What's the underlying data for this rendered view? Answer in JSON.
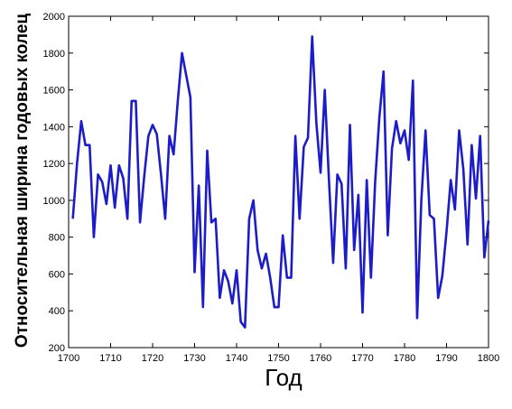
{
  "chart_data": {
    "type": "line",
    "title": "",
    "xlabel": "Год",
    "ylabel": "Относительная ширина годовых колец",
    "xlim": [
      1700,
      1800
    ],
    "ylim": [
      200,
      2000
    ],
    "xticks": [
      1700,
      1710,
      1720,
      1730,
      1740,
      1750,
      1760,
      1770,
      1780,
      1790,
      1800
    ],
    "yticks": [
      200,
      400,
      600,
      800,
      1000,
      1200,
      1400,
      1600,
      1800,
      2000
    ],
    "grid": false,
    "legend": "none",
    "line_color": "#1c1cc8",
    "series": [
      {
        "x": [
          1701,
          1702,
          1703,
          1704,
          1705,
          1706,
          1707,
          1708,
          1709,
          1710,
          1711,
          1712,
          1713,
          1714,
          1715,
          1716,
          1717,
          1718,
          1719,
          1720,
          1721,
          1722,
          1723,
          1724,
          1725,
          1726,
          1727,
          1728,
          1729,
          1730,
          1731,
          1732,
          1733,
          1734,
          1735,
          1736,
          1737,
          1738,
          1739,
          1740,
          1741,
          1742,
          1743,
          1744,
          1745,
          1746,
          1747,
          1748,
          1749,
          1750,
          1751,
          1752,
          1753,
          1754,
          1755,
          1756,
          1757,
          1758,
          1759,
          1760,
          1761,
          1762,
          1763,
          1764,
          1765,
          1766,
          1767,
          1768,
          1769,
          1770,
          1771,
          1772,
          1773,
          1774,
          1775,
          1776,
          1777,
          1778,
          1779,
          1780,
          1781,
          1782,
          1783,
          1784,
          1785,
          1786,
          1787,
          1788,
          1789,
          1790,
          1791,
          1792,
          1793,
          1794,
          1795,
          1796,
          1797,
          1798,
          1799,
          1800
        ],
        "values": [
          900,
          1200,
          1430,
          1300,
          1300,
          800,
          1140,
          1100,
          980,
          1190,
          960,
          1190,
          1120,
          900,
          1540,
          1540,
          880,
          1130,
          1350,
          1410,
          1360,
          1140,
          900,
          1350,
          1250,
          1540,
          1800,
          1680,
          1560,
          610,
          1080,
          420,
          1270,
          880,
          900,
          470,
          620,
          560,
          440,
          620,
          340,
          310,
          900,
          1000,
          730,
          630,
          710,
          580,
          420,
          420,
          810,
          580,
          580,
          1350,
          900,
          1290,
          1340,
          1890,
          1420,
          1150,
          1600,
          1110,
          660,
          1140,
          1090,
          630,
          1410,
          730,
          1030,
          390,
          1110,
          580,
          1100,
          1450,
          1700,
          810,
          1280,
          1430,
          1310,
          1380,
          1220,
          1650,
          360,
          1000,
          1380,
          920,
          900,
          470,
          590,
          830,
          1110,
          950,
          1380,
          1170,
          760,
          1300,
          1010,
          1350,
          690,
          890
        ]
      }
    ]
  }
}
